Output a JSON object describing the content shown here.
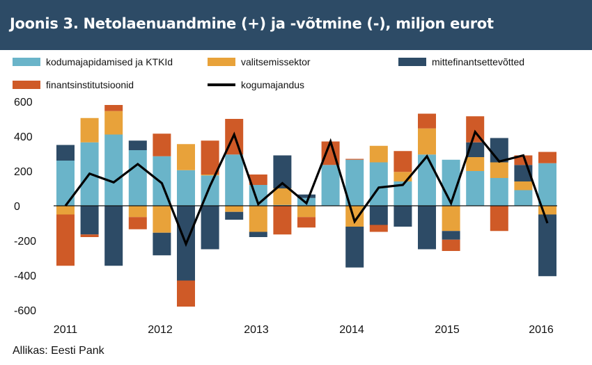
{
  "title": "Joonis 3. Netolaenuandmine (+) ja -võtmine (-), miljon eurot",
  "source": "Allikas: Eesti Pank",
  "chart_data": {
    "type": "bar",
    "stacked": true,
    "ylim": [
      -600,
      600
    ],
    "yticks": [
      600,
      400,
      200,
      0,
      -200,
      -400,
      -600
    ],
    "xticks": [
      "2011",
      "2012",
      "2013",
      "2014",
      "2015",
      "2016"
    ],
    "categories": [
      "2011 Q1",
      "2011 Q2",
      "2011 Q3",
      "2011 Q4",
      "2012 Q1",
      "2012 Q2",
      "2012 Q3",
      "2012 Q4",
      "2013 Q1",
      "2013 Q2",
      "2013 Q3",
      "2013 Q4",
      "2014 Q1",
      "2014 Q2",
      "2014 Q3",
      "2014 Q4",
      "2015 Q1",
      "2015 Q2",
      "2015 Q3",
      "2015 Q4",
      "2016 Q1"
    ],
    "legend_placement": "top",
    "series": [
      {
        "name": "kodumajapidamised ja KTKId",
        "color": "#6ab4c9",
        "kind": "bar",
        "values": [
          260,
          365,
          410,
          320,
          285,
          205,
          175,
          295,
          120,
          5,
          45,
          235,
          265,
          250,
          140,
          295,
          265,
          200,
          160,
          90,
          245
        ]
      },
      {
        "name": "valitsemissektor",
        "color": "#e8a23a",
        "kind": "bar",
        "values": [
          -50,
          140,
          135,
          -65,
          -155,
          150,
          5,
          -35,
          -150,
          95,
          -65,
          0,
          -120,
          95,
          55,
          150,
          -145,
          80,
          90,
          50,
          -50
        ]
      },
      {
        "name": "mittefinantsettevõtted",
        "color": "#2d4b66",
        "kind": "bar",
        "values": [
          90,
          -165,
          -345,
          55,
          -130,
          -430,
          -250,
          -45,
          -30,
          190,
          20,
          0,
          -235,
          -110,
          -120,
          -250,
          -50,
          85,
          140,
          95,
          -355
        ]
      },
      {
        "name": "finantsinstitutsioonid",
        "color": "#cf5a27",
        "kind": "bar",
        "values": [
          -295,
          -15,
          35,
          -70,
          130,
          -150,
          195,
          205,
          60,
          -165,
          -60,
          135,
          5,
          -40,
          120,
          85,
          -65,
          150,
          -145,
          55,
          65
        ]
      },
      {
        "name": "kogumajandus",
        "color": "#000000",
        "kind": "line",
        "values": [
          0,
          185,
          135,
          240,
          130,
          -220,
          115,
          410,
          10,
          130,
          15,
          370,
          -90,
          105,
          120,
          285,
          15,
          425,
          255,
          290,
          -100
        ]
      }
    ]
  }
}
